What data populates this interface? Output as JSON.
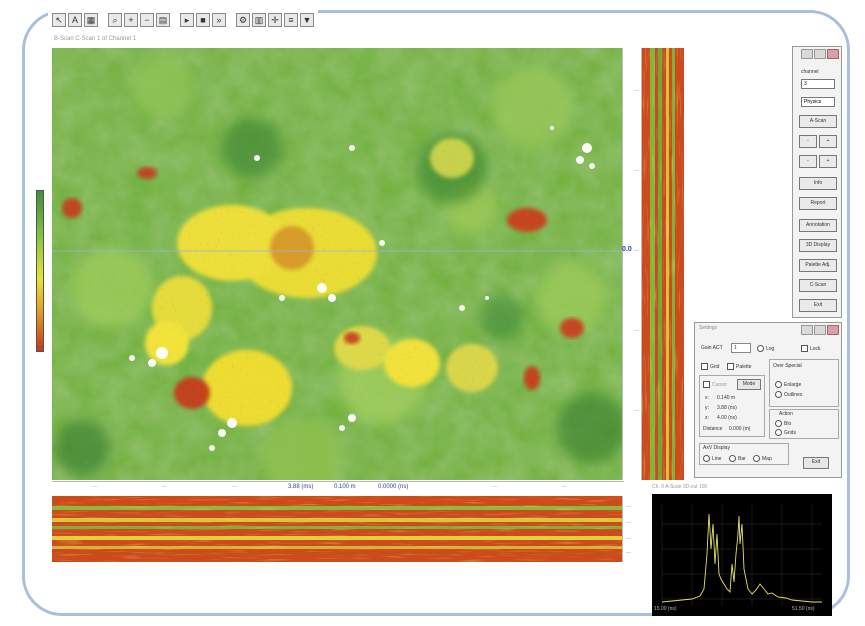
{
  "toolbar": {
    "icons": [
      "arrow-icon",
      "text-icon",
      "grid-icon",
      "zoom-icon",
      "zoom-in-icon",
      "zoom-out-icon",
      "print-icon",
      "play-icon",
      "stop-icon",
      "forward-icon",
      "settings-icon",
      "grid2-icon",
      "cross-icon",
      "layers-icon",
      "marker-icon"
    ]
  },
  "map": {
    "title": "B-Scan C-Scan 1 of Channel 1",
    "depth_label": "0.0",
    "hscale_values": [
      "3.88 (ms)",
      "0.100 m",
      "0.0000 (ns)"
    ]
  },
  "control_panel": {
    "channel_label": "channel",
    "channel_value": "3",
    "mode_value": "Physics",
    "buttons": [
      "A-Scan",
      "-",
      "-",
      "Info",
      "Report",
      "Annotation",
      "3D Display",
      "Palette Adj.",
      "C-Scan",
      "Exit"
    ],
    "small_plus": [
      "+",
      "+"
    ]
  },
  "settings_panel": {
    "title": "Settings",
    "gain_label": "Gain ACT",
    "gain_value": "1",
    "log_label": "Log",
    "lock_label": "Lock",
    "grid_label": "Grid",
    "palette_label": "Palette",
    "cursor_label": "Cursor",
    "mode_button": "Mode",
    "x_label": "x:",
    "x_value": "0.140 m",
    "y_label": "y:",
    "y_value": "3.88 (ns)",
    "z_label": "z:",
    "z_value": "4.00 (ns)",
    "distance_label": "Distance",
    "distance_value": "0.000 (m)",
    "overlay_title": "Over Special",
    "overlay_opt1": "Enlarge",
    "overlay_opt2": "Outlines",
    "action_title": "Action",
    "action_opt1": "Blo",
    "action_opt2": "Grids",
    "axis_display_label": "AxV Display",
    "axis_opt1": "Line",
    "axis_opt2": "Bar",
    "axis_opt3": "Map",
    "exit_button": "Exit"
  },
  "spectrum": {
    "title": "Ch. 0 A-Scan 3D-cut 100",
    "left_label": "15.00 (ns)",
    "right_label": "51.50 (ns)"
  }
}
